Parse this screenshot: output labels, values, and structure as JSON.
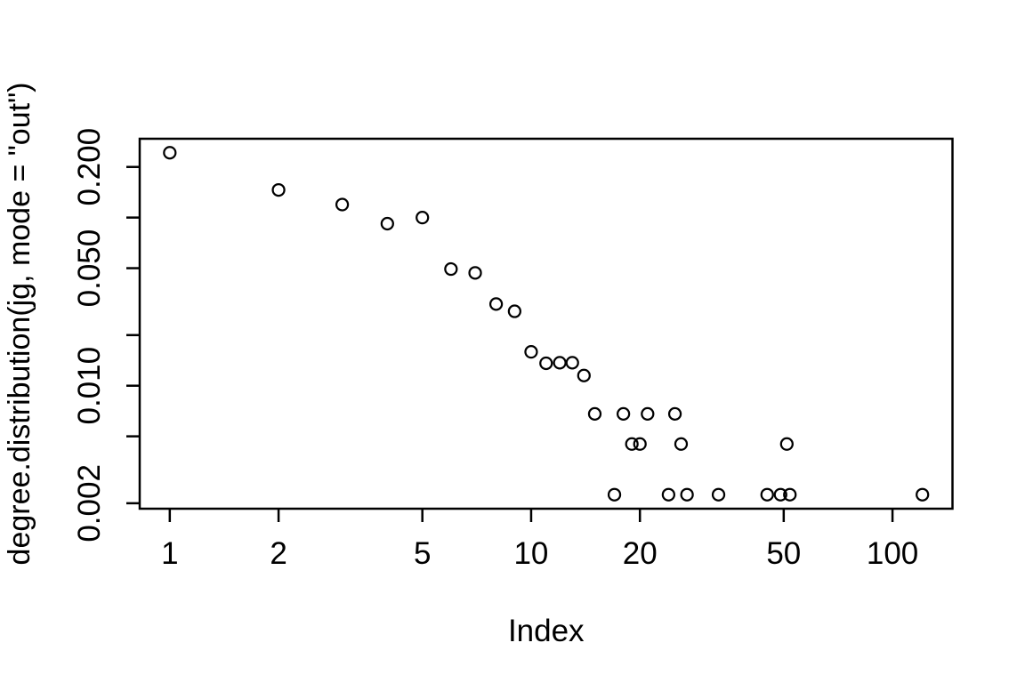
{
  "page": {
    "background_color": "#ffffff",
    "foreground_color": "#000000"
  },
  "chart_data": {
    "type": "scatter",
    "title": "",
    "xlabel": "Index",
    "ylabel": "degree.distribution(jg, mode = \"out\")",
    "x_scale": "log",
    "y_scale": "log",
    "x_range": [
      0.8255,
      146.56
    ],
    "y_range": [
      0.0018562,
      0.29432
    ],
    "grid": false,
    "legend": "none",
    "marker": "open-circle",
    "marker_color": "#000000",
    "x_ticks": [
      {
        "value": 1,
        "label": "1"
      },
      {
        "value": 2,
        "label": "2"
      },
      {
        "value": 5,
        "label": "5"
      },
      {
        "value": 10,
        "label": "10"
      },
      {
        "value": 20,
        "label": "20"
      },
      {
        "value": 50,
        "label": "50"
      },
      {
        "value": 100,
        "label": "100"
      }
    ],
    "y_ticks": [
      {
        "value": 0.2,
        "label": "0.200"
      },
      {
        "value": 0.1,
        "label": ""
      },
      {
        "value": 0.05,
        "label": "0.050"
      },
      {
        "value": 0.02,
        "label": ""
      },
      {
        "value": 0.01,
        "label": "0.010"
      },
      {
        "value": 0.005,
        "label": ""
      },
      {
        "value": 0.002,
        "label": "0.002"
      }
    ],
    "points": [
      {
        "x": 1,
        "y": 0.243
      },
      {
        "x": 2,
        "y": 0.146
      },
      {
        "x": 3,
        "y": 0.1195
      },
      {
        "x": 4,
        "y": 0.092
      },
      {
        "x": 5,
        "y": 0.1
      },
      {
        "x": 6,
        "y": 0.0494
      },
      {
        "x": 7,
        "y": 0.0469
      },
      {
        "x": 8,
        "y": 0.0306
      },
      {
        "x": 9,
        "y": 0.0277
      },
      {
        "x": 10,
        "y": 0.0159
      },
      {
        "x": 11,
        "y": 0.0136
      },
      {
        "x": 12,
        "y": 0.0137
      },
      {
        "x": 13,
        "y": 0.0137
      },
      {
        "x": 14,
        "y": 0.0115
      },
      {
        "x": 15,
        "y": 0.0068
      },
      {
        "x": 17,
        "y": 0.00225
      },
      {
        "x": 18,
        "y": 0.0068
      },
      {
        "x": 19,
        "y": 0.0045
      },
      {
        "x": 20,
        "y": 0.0045
      },
      {
        "x": 21,
        "y": 0.0068
      },
      {
        "x": 24,
        "y": 0.00225
      },
      {
        "x": 25,
        "y": 0.0068
      },
      {
        "x": 26,
        "y": 0.0045
      },
      {
        "x": 27,
        "y": 0.00225
      },
      {
        "x": 33,
        "y": 0.00225
      },
      {
        "x": 45,
        "y": 0.00225
      },
      {
        "x": 49,
        "y": 0.00225
      },
      {
        "x": 51,
        "y": 0.0045
      },
      {
        "x": 52,
        "y": 0.00225
      },
      {
        "x": 121,
        "y": 0.00225
      }
    ]
  }
}
